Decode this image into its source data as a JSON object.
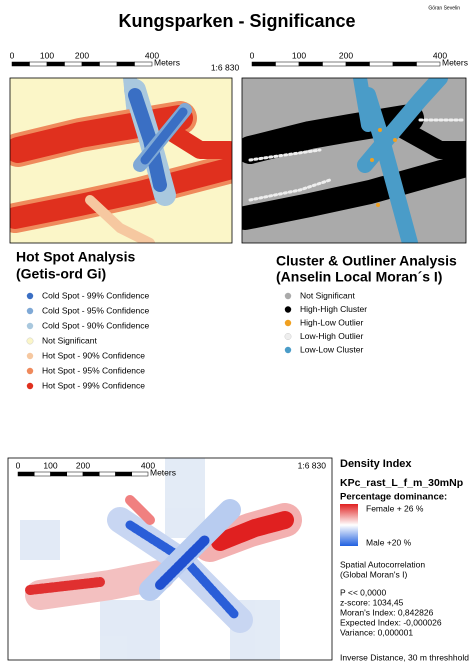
{
  "header": {
    "title": "Kungsparken - Significance",
    "author": "Göran Sevelin"
  },
  "scale_left": {
    "ticks": [
      "0",
      "100",
      "200",
      "400"
    ],
    "unit": "Meters"
  },
  "scale_ratio": "1:6 830",
  "scale_right": {
    "ticks": [
      "0",
      "100",
      "200",
      "400"
    ],
    "unit": "Meters"
  },
  "hotspot": {
    "title": "Hot Spot Analysis",
    "subtitle": "(Getis-ord Gi)",
    "legend": [
      {
        "label": "Cold Spot - 99% Confidence",
        "color": "#3a6fc4"
      },
      {
        "label": "Cold Spot - 95% Confidence",
        "color": "#7fa9d6"
      },
      {
        "label": "Cold Spot - 90% Confidence",
        "color": "#a9c8de"
      },
      {
        "label": "Not Significant",
        "color": "#fbf6c8"
      },
      {
        "label": "Hot Spot - 90% Confidence",
        "color": "#f6c8a0"
      },
      {
        "label": "Hot Spot - 95% Confidence",
        "color": "#ef8a5c"
      },
      {
        "label": "Hot Spot - 99% Confidence",
        "color": "#e0301e"
      }
    ]
  },
  "cluster": {
    "title": "Cluster & Outliner Analysis",
    "subtitle": "(Anselin Local Moran´s I)",
    "legend": [
      {
        "label": "Not Significant",
        "color": "#aaaaaa"
      },
      {
        "label": "High-High Cluster",
        "color": "#000000"
      },
      {
        "label": "High-Low Outlier",
        "color": "#f0a020"
      },
      {
        "label": "Low-High Outlier",
        "color": "#eeeeee"
      },
      {
        "label": "Low-Low Cluster",
        "color": "#4a9cc8"
      }
    ]
  },
  "density": {
    "scale": {
      "ticks": [
        "0",
        "100",
        "200",
        "400"
      ],
      "unit": "Meters"
    },
    "scale_ratio": "1:6 830",
    "title": "Density Index",
    "layer": "KPc_rast_L_f_m_30mNp",
    "legend_title": "Percentage dominance:",
    "high_label": "Female + 26 %",
    "low_label": "Male +20 %",
    "stats_title": [
      "Spatial Autocorrelation",
      "(Global Moran's I)"
    ],
    "stats": [
      "P << 0,0000",
      "z-score: 1034,45",
      "Moran's Index: 0,842826",
      "Expected Index: -0,000026",
      "Variance: 0,000001"
    ],
    "note": "Inverse Distance, 30 m threshhold"
  }
}
